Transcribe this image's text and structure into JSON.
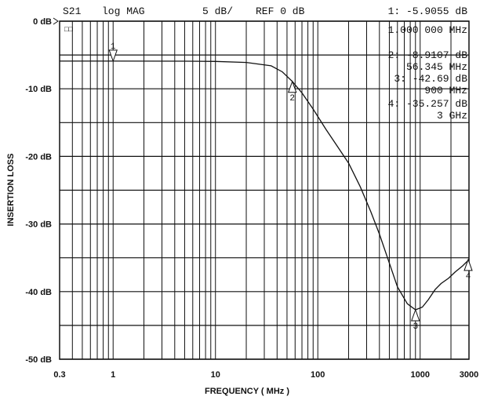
{
  "chart_data": {
    "type": "line",
    "header": {
      "trace": "S21",
      "format": "log MAG",
      "scale": "5 dB/",
      "ref": "REF 0 dB"
    },
    "xlabel": "FREQUENCY ( MHz )",
    "ylabel": "INSERTION LOSS",
    "xscale": "log",
    "xlim": [
      0.3,
      3000
    ],
    "ylim": [
      -50,
      0
    ],
    "grid": true,
    "xticks": [
      {
        "v": 0.3,
        "label": "0.3"
      },
      {
        "v": 1,
        "label": "1"
      },
      {
        "v": 10,
        "label": "10"
      },
      {
        "v": 100,
        "label": "100"
      },
      {
        "v": 1000,
        "label": "1000"
      },
      {
        "v": 3000,
        "label": "3000"
      }
    ],
    "yticks": [
      {
        "v": 0,
        "label": "0 dB"
      },
      {
        "v": -10,
        "label": "-10 dB"
      },
      {
        "v": -20,
        "label": "-20 dB"
      },
      {
        "v": -30,
        "label": "-30 dB"
      },
      {
        "v": -40,
        "label": "-40 dB"
      },
      {
        "v": -50,
        "label": "-50 dB"
      }
    ],
    "series": [
      {
        "x": [
          0.3,
          1,
          5,
          10,
          20,
          35,
          45,
          56.345,
          70,
          90,
          120,
          160,
          200,
          260,
          330,
          400,
          500,
          600,
          750,
          900,
          1050,
          1200,
          1400,
          1600,
          1900,
          2200,
          2600,
          3000
        ],
        "y": [
          -5.9,
          -5.9055,
          -5.92,
          -5.95,
          -6.1,
          -6.6,
          -7.5,
          -8.9107,
          -10.6,
          -13,
          -16,
          -18.8,
          -21,
          -24.5,
          -28.2,
          -31.5,
          -35.8,
          -39.3,
          -41.8,
          -42.69,
          -42.3,
          -41.2,
          -39.7,
          -38.8,
          -38,
          -37.1,
          -36.2,
          -35.257
        ]
      }
    ],
    "markers": [
      {
        "id": "1",
        "value": "-5.9055 dB",
        "freq": "1.000 000 MHz",
        "x": 1,
        "y": -5.9055
      },
      {
        "id": "2",
        "value": "-8.9107 dB",
        "freq": "56.345 MHz",
        "x": 56.345,
        "y": -8.9107
      },
      {
        "id": "3",
        "value": "-42.69  dB",
        "freq": "900 MHz",
        "x": 900,
        "y": -42.69
      },
      {
        "id": "4",
        "value": "-35.257 dB",
        "freq": "3 GHz",
        "x": 3000,
        "y": -35.257
      }
    ],
    "status_box": "□□"
  }
}
